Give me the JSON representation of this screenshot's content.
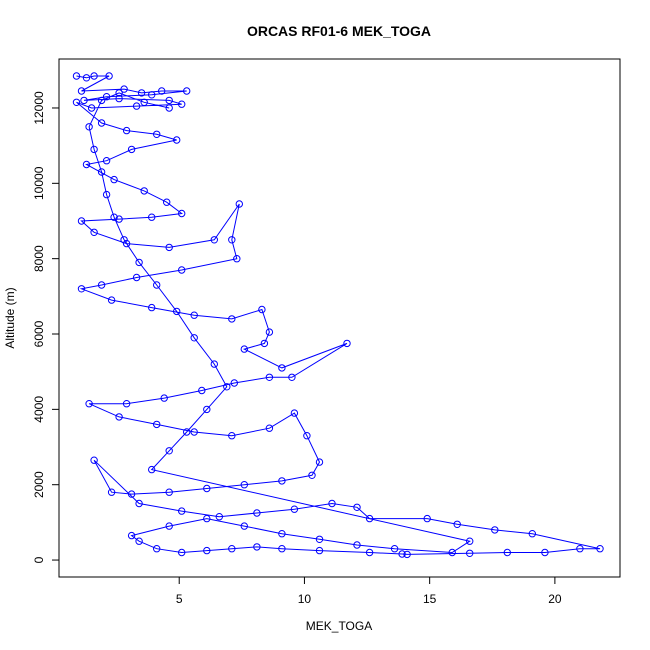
{
  "chart_data": {
    "type": "scatter",
    "title": "ORCAS RF01-6 MEK_TOGA",
    "xlabel": "MEK_TOGA",
    "ylabel": "Altitude (m)",
    "xlim": [
      0.2,
      22.6
    ],
    "ylim": [
      -450,
      13300
    ],
    "x_ticks": [
      5,
      10,
      15,
      20
    ],
    "x_tick_labels": [
      "5",
      "10",
      "15",
      "20"
    ],
    "y_ticks": [
      0,
      2000,
      4000,
      6000,
      8000,
      10000,
      12000
    ],
    "y_tick_labels": [
      "0",
      "2000",
      "4000",
      "6000",
      "8000",
      "10000",
      "12000"
    ],
    "grid": false,
    "series": [
      {
        "color": "#0000ff",
        "marker": "open-circle",
        "connected": true,
        "points": [
          [
            0.9,
            12850
          ],
          [
            1.3,
            12800
          ],
          [
            1.6,
            12850
          ],
          [
            2.2,
            12850
          ],
          [
            1.1,
            12450
          ],
          [
            2.8,
            12500
          ],
          [
            3.5,
            12400
          ],
          [
            4.3,
            12450
          ],
          [
            5.3,
            12450
          ],
          [
            3.9,
            12350
          ],
          [
            2.1,
            12300
          ],
          [
            1.2,
            12200
          ],
          [
            2.6,
            12250
          ],
          [
            4.6,
            12200
          ],
          [
            5.1,
            12100
          ],
          [
            3.3,
            12050
          ],
          [
            1.5,
            12000
          ],
          [
            0.9,
            12150
          ],
          [
            1.9,
            11600
          ],
          [
            2.9,
            11400
          ],
          [
            4.1,
            11300
          ],
          [
            4.9,
            11150
          ],
          [
            3.1,
            10900
          ],
          [
            2.1,
            10600
          ],
          [
            1.3,
            10500
          ],
          [
            2.4,
            10100
          ],
          [
            3.6,
            9800
          ],
          [
            4.5,
            9500
          ],
          [
            5.1,
            9200
          ],
          [
            3.9,
            9100
          ],
          [
            2.6,
            9050
          ],
          [
            1.1,
            9000
          ],
          [
            1.6,
            8700
          ],
          [
            2.9,
            8400
          ],
          [
            4.6,
            8300
          ],
          [
            6.4,
            8500
          ],
          [
            7.4,
            9450
          ],
          [
            7.1,
            8500
          ],
          [
            7.3,
            8000
          ],
          [
            5.1,
            7700
          ],
          [
            3.3,
            7500
          ],
          [
            1.9,
            7300
          ],
          [
            1.1,
            7200
          ],
          [
            2.3,
            6900
          ],
          [
            3.9,
            6700
          ],
          [
            5.6,
            6500
          ],
          [
            7.1,
            6400
          ],
          [
            8.3,
            6650
          ],
          [
            8.6,
            6050
          ],
          [
            8.4,
            5750
          ],
          [
            7.6,
            5600
          ],
          [
            9.1,
            5100
          ],
          [
            11.7,
            5750
          ],
          [
            9.5,
            4850
          ],
          [
            8.6,
            4850
          ],
          [
            7.2,
            4700
          ],
          [
            5.9,
            4500
          ],
          [
            4.4,
            4300
          ],
          [
            2.9,
            4150
          ],
          [
            1.4,
            4150
          ],
          [
            2.6,
            3800
          ],
          [
            4.1,
            3600
          ],
          [
            5.6,
            3400
          ],
          [
            7.1,
            3300
          ],
          [
            8.6,
            3500
          ],
          [
            9.6,
            3900
          ],
          [
            10.1,
            3300
          ],
          [
            10.6,
            2600
          ],
          [
            10.3,
            2250
          ],
          [
            9.1,
            2100
          ],
          [
            7.6,
            2000
          ],
          [
            6.1,
            1900
          ],
          [
            4.6,
            1800
          ],
          [
            3.1,
            1750
          ],
          [
            2.3,
            1800
          ],
          [
            1.6,
            2650
          ],
          [
            3.4,
            1500
          ],
          [
            5.1,
            1300
          ],
          [
            6.6,
            1150
          ],
          [
            8.1,
            1250
          ],
          [
            9.6,
            1350
          ],
          [
            11.1,
            1500
          ],
          [
            12.1,
            1400
          ],
          [
            12.6,
            1100
          ],
          [
            14.9,
            1100
          ],
          [
            16.1,
            950
          ],
          [
            17.6,
            800
          ],
          [
            19.1,
            700
          ],
          [
            21.8,
            300
          ],
          [
            21.0,
            300
          ],
          [
            19.6,
            200
          ],
          [
            18.1,
            200
          ],
          [
            16.6,
            180
          ],
          [
            14.1,
            150
          ],
          [
            13.9,
            160
          ],
          [
            12.6,
            200
          ],
          [
            10.6,
            250
          ],
          [
            9.1,
            300
          ],
          [
            8.1,
            350
          ],
          [
            7.1,
            300
          ],
          [
            6.1,
            250
          ],
          [
            5.1,
            200
          ],
          [
            4.1,
            300
          ],
          [
            3.4,
            500
          ],
          [
            3.1,
            650
          ],
          [
            4.6,
            900
          ],
          [
            6.1,
            1100
          ],
          [
            7.6,
            900
          ],
          [
            9.1,
            700
          ],
          [
            10.6,
            550
          ],
          [
            12.1,
            400
          ],
          [
            13.6,
            300
          ],
          [
            15.9,
            200
          ],
          [
            16.6,
            500
          ],
          [
            3.9,
            2400
          ],
          [
            4.6,
            2900
          ],
          [
            5.3,
            3400
          ],
          [
            6.1,
            4000
          ],
          [
            6.9,
            4600
          ],
          [
            6.4,
            5200
          ],
          [
            5.6,
            5900
          ],
          [
            4.9,
            6600
          ],
          [
            4.1,
            7300
          ],
          [
            3.4,
            7900
          ],
          [
            2.8,
            8500
          ],
          [
            2.4,
            9100
          ],
          [
            2.1,
            9700
          ],
          [
            1.9,
            10300
          ],
          [
            1.6,
            10900
          ],
          [
            1.4,
            11500
          ],
          [
            1.9,
            12200
          ],
          [
            2.6,
            12400
          ],
          [
            3.6,
            12150
          ],
          [
            4.6,
            12000
          ]
        ]
      }
    ]
  }
}
